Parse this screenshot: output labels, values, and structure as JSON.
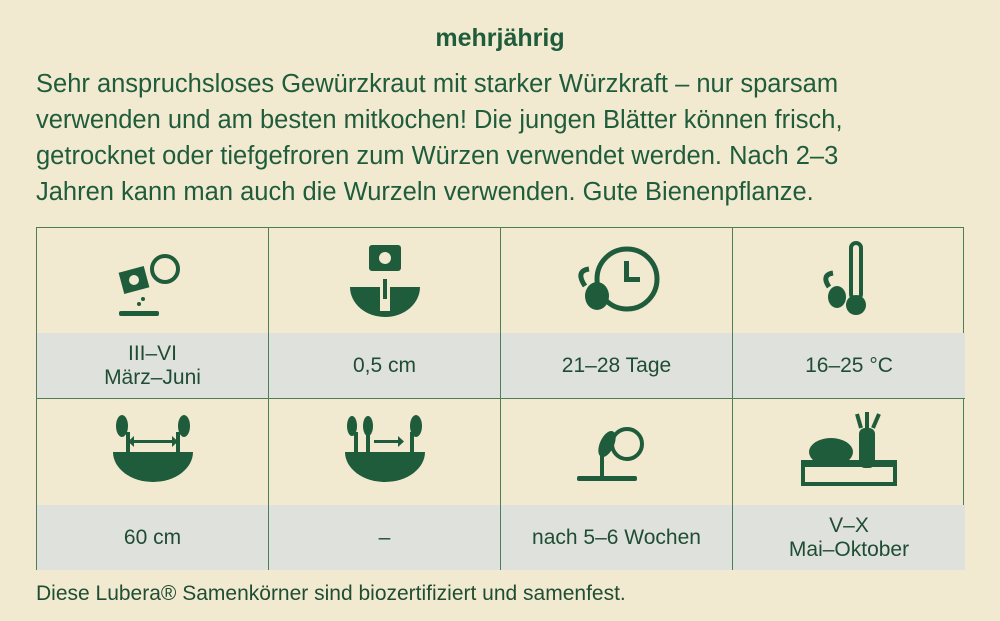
{
  "heading": "mehrjährig",
  "description": [
    "Sehr anspruchsloses Gewürzkraut mit starker Würzkraft – nur sparsam",
    "verwenden und am besten mitkochen! Die jungen Blätter können frisch,",
    "getrocknet oder tiefgefroren zum Würzen verwendet werden. Nach 2–3",
    "Jahren kann man auch die Wurzeln verwenden. Gute Bienenpflanze."
  ],
  "grid": {
    "rows": [
      [
        {
          "lines": [
            "III–VI",
            "März–Juni"
          ]
        },
        {
          "lines": [
            "0,5 cm"
          ]
        },
        {
          "lines": [
            "21–28 Tage"
          ]
        },
        {
          "lines": [
            "16–25 °C"
          ]
        }
      ],
      [
        {
          "lines": [
            "60 cm"
          ]
        },
        {
          "lines": [
            "–"
          ]
        },
        {
          "lines": [
            "nach 5–6 Wochen"
          ]
        },
        {
          "lines": [
            "V–X",
            "Mai–Oktober"
          ]
        }
      ]
    ]
  },
  "footer": "Diese Lubera® Samenkörner sind biozertifiziert und samenfest."
}
